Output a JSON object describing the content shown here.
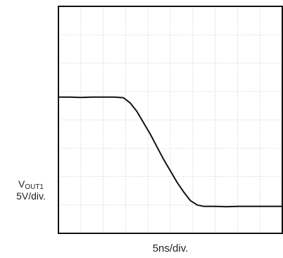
{
  "chart_data": {
    "type": "line",
    "title": "",
    "xlabel": "5ns/div.",
    "ylabel_signal": "V",
    "ylabel_signal_sub": "OUT1",
    "ylabel_scale": "5V/div.",
    "x_divisions": 10,
    "y_divisions": 8,
    "xlim": [
      0,
      10
    ],
    "ylim": [
      0,
      8
    ],
    "x_unit": "div",
    "y_unit": "div",
    "grid": true,
    "trace_color": "#111111",
    "grid_color": "#bbbbbb",
    "series": [
      {
        "x": [
          0,
          0.5,
          1.0,
          1.5,
          2.0,
          2.5,
          2.9,
          3.2,
          3.5,
          3.8,
          4.1,
          4.4,
          4.7,
          5.0,
          5.3,
          5.6,
          5.9,
          6.2,
          6.5,
          7.0,
          7.5,
          8.0,
          8.5,
          9.0,
          9.5,
          10.0
        ],
        "y": [
          4.8,
          4.8,
          4.79,
          4.8,
          4.8,
          4.8,
          4.78,
          4.6,
          4.3,
          3.9,
          3.5,
          3.05,
          2.6,
          2.2,
          1.8,
          1.45,
          1.15,
          1.0,
          0.95,
          0.95,
          0.94,
          0.95,
          0.95,
          0.95,
          0.95,
          0.95
        ]
      }
    ]
  }
}
